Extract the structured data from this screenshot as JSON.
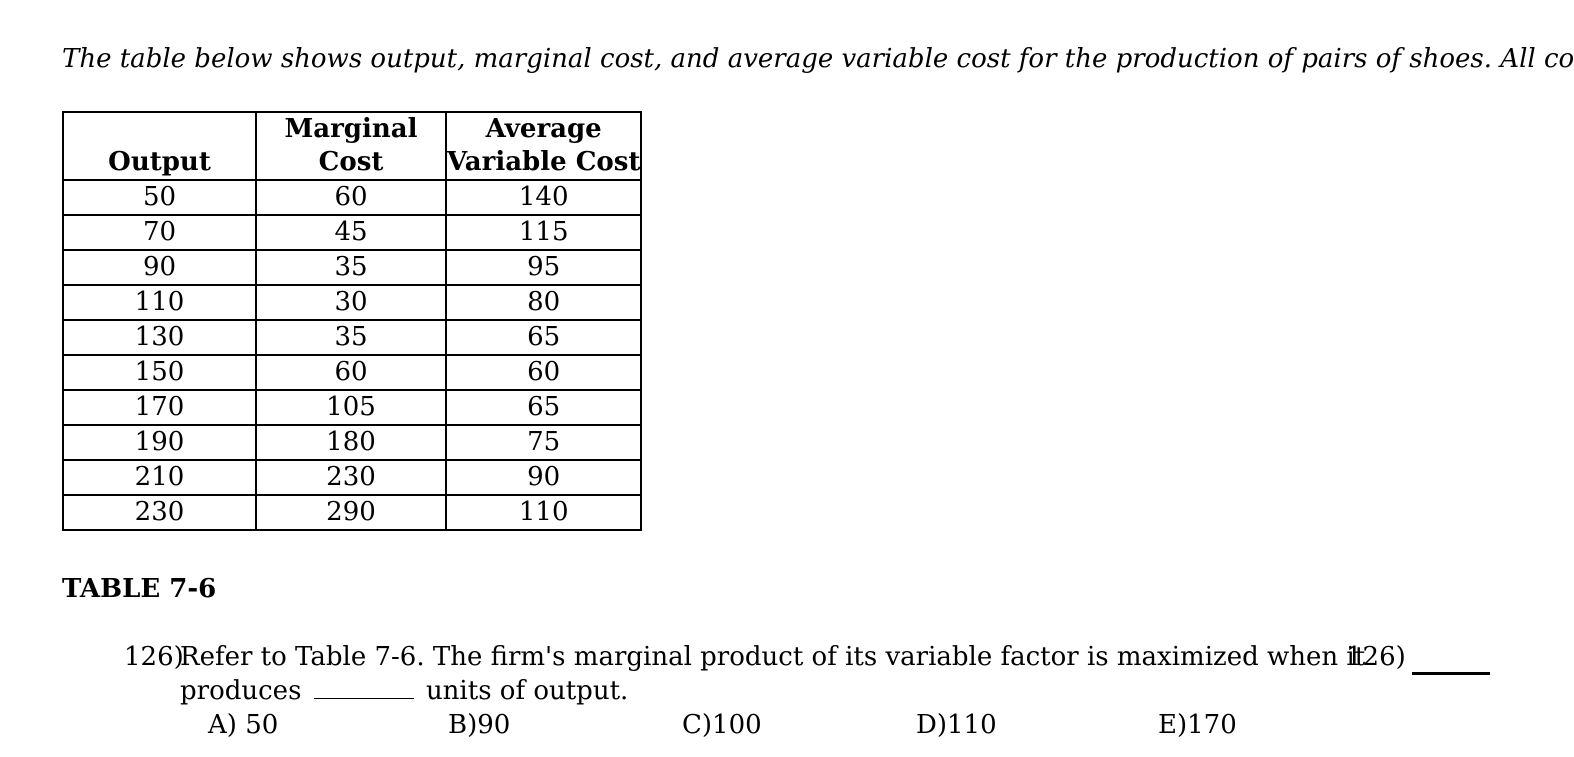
{
  "intro": "The table below shows output, marginal cost, and average variable cost for the production of pairs of shoes. All co",
  "table": {
    "headers": {
      "output": "Output",
      "mc_line1": "Marginal",
      "mc_line2": "Cost",
      "avc_line1": "Average",
      "avc_line2": "Variable Cost"
    },
    "rows": [
      {
        "output": "50",
        "mc": "60",
        "avc": "140"
      },
      {
        "output": "70",
        "mc": "45",
        "avc": "115"
      },
      {
        "output": "90",
        "mc": "35",
        "avc": "95"
      },
      {
        "output": "110",
        "mc": "30",
        "avc": "80"
      },
      {
        "output": "130",
        "mc": "35",
        "avc": "65"
      },
      {
        "output": "150",
        "mc": "60",
        "avc": "60"
      },
      {
        "output": "170",
        "mc": "105",
        "avc": "65"
      },
      {
        "output": "190",
        "mc": "180",
        "avc": "75"
      },
      {
        "output": "210",
        "mc": "230",
        "avc": "90"
      },
      {
        "output": "230",
        "mc": "290",
        "avc": "110"
      }
    ]
  },
  "table_label": "TABLE 7-6",
  "question": {
    "number": "126)",
    "text_line1": "Refer to Table 7-6. The firm's marginal product of its variable factor is maximized when it",
    "text_line2_before": "produces",
    "text_line2_after": "units of output.",
    "number_right": "126)",
    "choices": [
      {
        "letter": "A)",
        "value": "50"
      },
      {
        "letter": "B)",
        "value": "90"
      },
      {
        "letter": "C)",
        "value": "100"
      },
      {
        "letter": "D)",
        "value": "110"
      },
      {
        "letter": "E)",
        "value": "170"
      }
    ]
  }
}
